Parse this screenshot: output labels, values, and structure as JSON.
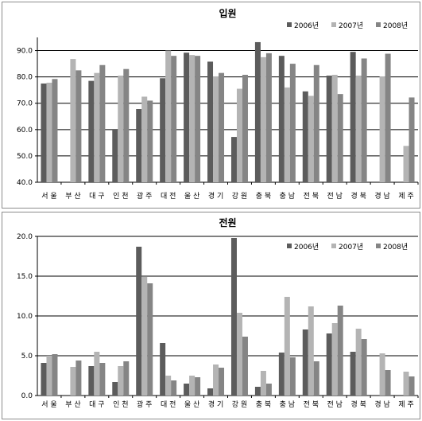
{
  "colors": {
    "2006": "#5c5c5c",
    "2007": "#b4b4b4",
    "2008": "#858585",
    "axis": "#000000",
    "grid": "#000000"
  },
  "chart_data": [
    {
      "type": "bar",
      "title": "입원",
      "categories": [
        "서울",
        "부산",
        "대구",
        "인천",
        "광주",
        "대전",
        "울산",
        "경기",
        "강원",
        "충북",
        "충남",
        "전북",
        "전남",
        "경북",
        "경남",
        "제주"
      ],
      "ylim": [
        40,
        95
      ],
      "yticks": [
        "40.0",
        "50.0",
        "60.0",
        "70.0",
        "80.0",
        "90.0"
      ],
      "legend_position": "top-right",
      "grid": true,
      "series": [
        {
          "name": "2006년",
          "values": [
            77.5,
            null,
            78.5,
            60.2,
            67.8,
            79.5,
            89.2,
            85.8,
            57.2,
            93.2,
            88.0,
            74.5,
            80.5,
            89.5,
            null,
            null
          ]
        },
        {
          "name": "2007년",
          "values": [
            77.8,
            86.8,
            81.5,
            80.5,
            72.5,
            90.0,
            88.3,
            80.2,
            75.5,
            87.5,
            76.0,
            72.8,
            80.8,
            80.5,
            80.2,
            53.8
          ]
        },
        {
          "name": "2008년",
          "values": [
            79.2,
            82.5,
            84.5,
            83.0,
            71.0,
            88.0,
            88.0,
            81.5,
            80.8,
            89.0,
            85.0,
            84.5,
            73.5,
            87.0,
            88.8,
            72.2
          ]
        }
      ]
    },
    {
      "type": "bar",
      "title": "전원",
      "categories": [
        "서울",
        "부산",
        "대구",
        "인천",
        "광주",
        "대전",
        "울산",
        "경기",
        "강원",
        "충북",
        "충남",
        "전북",
        "전남",
        "경북",
        "경남",
        "제주"
      ],
      "ylim": [
        0,
        20
      ],
      "yticks": [
        "0.0",
        "5.0",
        "10.0",
        "15.0",
        "20.0"
      ],
      "legend_position": "top-right",
      "grid": true,
      "series": [
        {
          "name": "2006년",
          "values": [
            4.1,
            null,
            3.7,
            1.7,
            18.7,
            6.6,
            1.5,
            0.9,
            19.8,
            1.1,
            5.4,
            8.3,
            7.8,
            5.5,
            null,
            null
          ]
        },
        {
          "name": "2007년",
          "values": [
            5.0,
            3.6,
            5.5,
            3.7,
            14.9,
            2.5,
            2.5,
            3.9,
            10.4,
            3.1,
            12.4,
            11.2,
            9.1,
            8.4,
            5.3,
            3.0
          ]
        },
        {
          "name": "2008년",
          "values": [
            5.2,
            4.4,
            4.1,
            4.3,
            14.1,
            1.9,
            2.3,
            3.5,
            7.4,
            1.5,
            4.8,
            4.3,
            11.3,
            7.1,
            3.2,
            2.4
          ]
        }
      ]
    }
  ]
}
